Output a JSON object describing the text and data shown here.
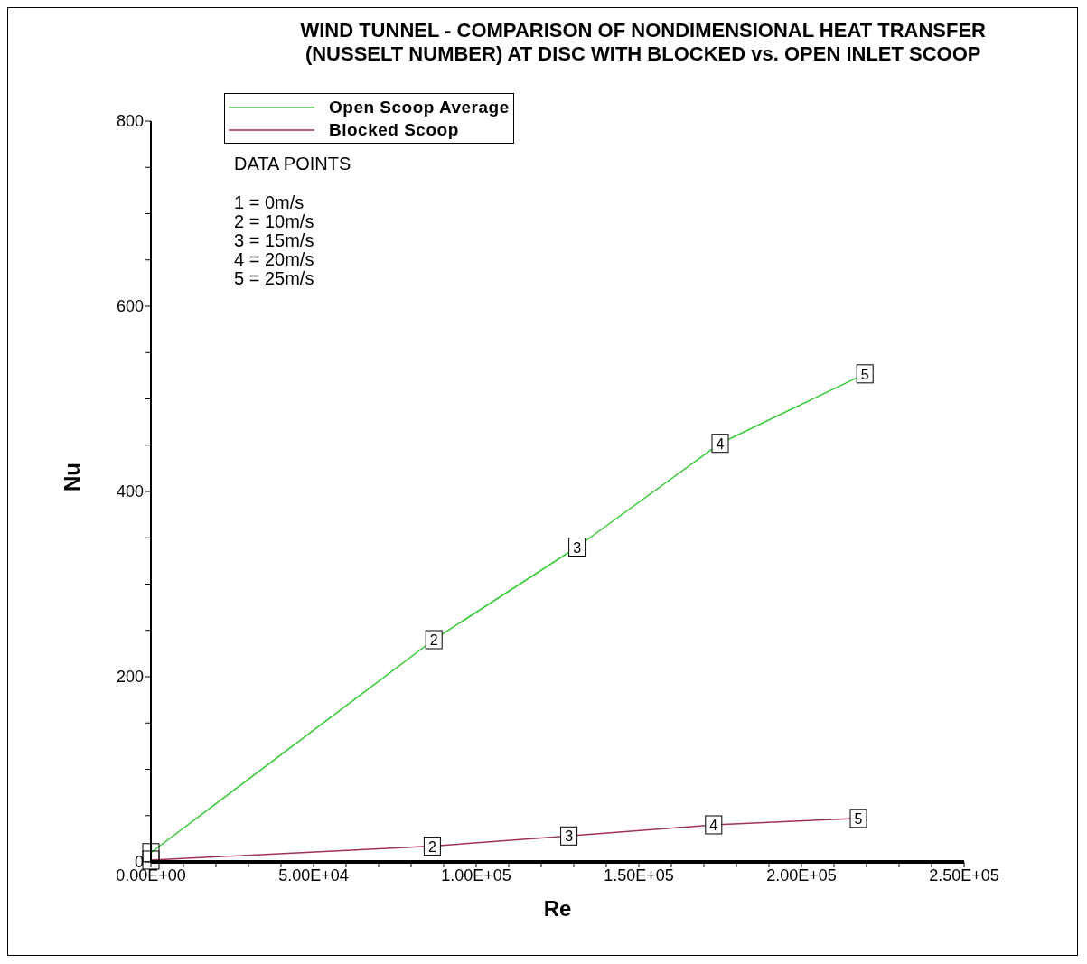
{
  "chart_data": {
    "type": "line",
    "title": "WIND TUNNEL - COMPARISON OF NONDIMENSIONAL HEAT TRANSFER\n(NUSSELT NUMBER) AT DISC WITH BLOCKED vs. OPEN INLET SCOOP",
    "xlabel": "Re",
    "ylabel": "Nu",
    "series": [
      {
        "name": "Open Scoop Average",
        "color": "#33cc33",
        "x": [
          0,
          87000,
          131000,
          175000,
          219500
        ],
        "values": [
          10,
          240,
          340,
          452,
          527
        ]
      },
      {
        "name": "Blocked Scoop",
        "color": "#a0305a",
        "x": [
          0,
          86500,
          128500,
          173000,
          217500
        ],
        "values": [
          2,
          17,
          28,
          40,
          47
        ]
      }
    ],
    "xlim": [
      0,
      250000
    ],
    "ylim": [
      0,
      800
    ],
    "xticks": [
      {
        "value": 0,
        "label": "0.00E+00"
      },
      {
        "value": 10000,
        "label": null
      },
      {
        "value": 20000,
        "label": null
      },
      {
        "value": 30000,
        "label": null
      },
      {
        "value": 40000,
        "label": null
      },
      {
        "value": 50000,
        "label": "5.00E+04"
      },
      {
        "value": 60000,
        "label": null
      },
      {
        "value": 70000,
        "label": null
      },
      {
        "value": 80000,
        "label": null
      },
      {
        "value": 90000,
        "label": null
      },
      {
        "value": 100000,
        "label": "1.00E+05"
      },
      {
        "value": 110000,
        "label": null
      },
      {
        "value": 120000,
        "label": null
      },
      {
        "value": 130000,
        "label": null
      },
      {
        "value": 140000,
        "label": null
      },
      {
        "value": 150000,
        "label": "1.50E+05"
      },
      {
        "value": 160000,
        "label": null
      },
      {
        "value": 170000,
        "label": null
      },
      {
        "value": 180000,
        "label": null
      },
      {
        "value": 190000,
        "label": null
      },
      {
        "value": 200000,
        "label": "2.00E+05"
      },
      {
        "value": 210000,
        "label": null
      },
      {
        "value": 220000,
        "label": null
      },
      {
        "value": 230000,
        "label": null
      },
      {
        "value": 240000,
        "label": null
      },
      {
        "value": 250000,
        "label": "2.50E+05"
      }
    ],
    "yticks": [
      0,
      {
        "value": 50,
        "label": null
      },
      {
        "value": 100,
        "label": null
      },
      {
        "value": 150,
        "label": null
      },
      200,
      {
        "value": 250,
        "label": null
      },
      {
        "value": 300,
        "label": null
      },
      {
        "value": 350,
        "label": null
      },
      400,
      {
        "value": 450,
        "label": null
      },
      {
        "value": 500,
        "label": null
      },
      {
        "value": 550,
        "label": null
      },
      600,
      {
        "value": 650,
        "label": null
      },
      {
        "value": 700,
        "label": null
      },
      {
        "value": 750,
        "label": null
      },
      800
    ],
    "annotations": [
      "DATA POINTS",
      "1 = 0m/s",
      "2 = 10m/s",
      "3 = 15m/s",
      "4 = 20m/s",
      "5 = 25m/s",
      {
        "text": "2",
        "x": 87000,
        "y": 240
      },
      {
        "text": "3",
        "x": 131000,
        "y": 340
      },
      {
        "text": "4",
        "x": 175000,
        "y": 452
      },
      {
        "text": "5",
        "x": 219500,
        "y": 527
      },
      {
        "text": "2",
        "x": 86500,
        "y": 17
      },
      {
        "text": "3",
        "x": 128500,
        "y": 28
      },
      {
        "text": "4",
        "x": 173000,
        "y": 40
      },
      {
        "text": "5",
        "x": 217500,
        "y": 47
      }
    ],
    "legend": "top left",
    "grid": false,
    "marker": "square",
    "line_style": "solid"
  }
}
